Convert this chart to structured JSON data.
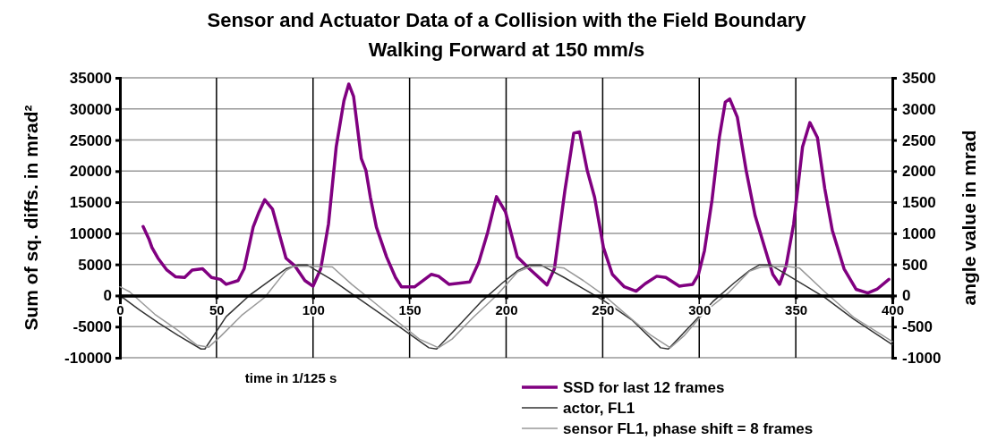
{
  "chart_data": {
    "type": "line",
    "title": "Sensor and Actuator Data of a Collision with the Field Boundary\nWalking Forward at 150 mm/s",
    "xlabel": "time in 1/125 s",
    "ylabel": "Sum of sq. diffs. in mrad²",
    "y2label": "angle value in mrad",
    "xlim": [
      0,
      400
    ],
    "xticks": [
      0,
      50,
      100,
      150,
      200,
      250,
      300,
      350,
      400
    ],
    "ylim": [
      -10000,
      35000
    ],
    "yticks": [
      -10000,
      -5000,
      0,
      5000,
      10000,
      15000,
      20000,
      25000,
      30000,
      35000
    ],
    "y2lim": [
      -1000,
      3500
    ],
    "y2ticks": [
      -1000,
      -500,
      0,
      500,
      1000,
      1500,
      2000,
      2500,
      3000,
      3500
    ],
    "grid": true,
    "legend": "bottom right",
    "line_style": "solid",
    "marker": "none",
    "series": [
      {
        "name": "SSD for last 12 frames",
        "color": "#800080",
        "x": [
          12,
          15,
          16.6,
          19.7,
          24.3,
          28.9,
          33.5,
          37.4,
          42.8,
          47.4,
          52,
          55,
          61.2,
          64.3,
          69,
          72,
          75,
          79,
          82,
          86,
          90.5,
          95.8,
          100,
          104,
          108,
          112,
          116,
          118.5,
          121,
          125,
          127.4,
          129.7,
          132.8,
          138.1,
          142.7,
          145.8,
          152.7,
          161.2,
          165,
          170.4,
          181.2,
          185.8,
          190.4,
          195,
          199.7,
          205.8,
          212,
          221.2,
          225,
          230.4,
          235,
          238,
          242,
          245.8,
          250.4,
          255,
          261.2,
          267.3,
          272,
          278,
          282.7,
          289.7,
          296.6,
          299.6,
          302.7,
          306.6,
          310.4,
          313.5,
          315.8,
          319.7,
          324.3,
          328.9,
          333.5,
          338.1,
          341.6,
          345,
          348.9,
          353.5,
          357.3,
          361.2,
          365,
          368.9,
          375,
          381.2,
          387.3,
          392,
          398.2
        ],
        "values": [
          11100,
          9100,
          7700,
          6000,
          4100,
          3000,
          2900,
          4100,
          4300,
          2900,
          2600,
          1800,
          2400,
          4300,
          11000,
          13400,
          15400,
          13900,
          10500,
          6000,
          4800,
          2400,
          1500,
          4300,
          11500,
          23900,
          31300,
          34000,
          32000,
          22000,
          20100,
          15800,
          11000,
          6200,
          2900,
          1400,
          1400,
          3400,
          3100,
          1800,
          2200,
          5300,
          10100,
          15900,
          13400,
          6200,
          4300,
          1700,
          4300,
          16800,
          26100,
          26300,
          20100,
          15800,
          7700,
          3400,
          1400,
          700,
          1900,
          3100,
          2900,
          1500,
          1800,
          3400,
          7200,
          15300,
          25400,
          31100,
          31600,
          28700,
          20100,
          12900,
          8100,
          3400,
          1800,
          4800,
          11500,
          23900,
          27800,
          25400,
          17200,
          10500,
          4300,
          1000,
          400,
          1000,
          2600
        ]
      },
      {
        "name": "actor, FL1",
        "color": "#333333",
        "axis": "y2",
        "x": [
          0,
          10,
          20,
          30,
          42,
          44,
          55,
          67,
          78,
          86,
          92,
          97,
          110,
          120,
          132,
          145,
          160,
          164,
          175,
          187,
          198,
          206,
          212,
          218,
          230,
          240,
          250,
          265,
          280,
          284,
          295,
          307,
          318,
          326,
          331,
          337,
          350,
          365,
          380,
          400
        ],
        "values": [
          0,
          -230,
          -440,
          -640,
          -860,
          -860,
          -340,
          0,
          250,
          430,
          490,
          490,
          250,
          30,
          -230,
          -510,
          -840,
          -860,
          -500,
          -100,
          200,
          400,
          490,
          490,
          290,
          110,
          -70,
          -390,
          -840,
          -860,
          -500,
          -100,
          200,
          400,
          490,
          490,
          250,
          -30,
          -380,
          -790
        ]
      },
      {
        "name": "sensor FL1, phase shift = 8 frames",
        "color": "#999999",
        "axis": "y2",
        "x": [
          0,
          5,
          18,
          30,
          40,
          46,
          52,
          63,
          75,
          86,
          90,
          100,
          110,
          120,
          132,
          145,
          155,
          165,
          172,
          183,
          195,
          206,
          213,
          222,
          230,
          240,
          250,
          262,
          275,
          285,
          292,
          303,
          315,
          326,
          332,
          345,
          352,
          365,
          380,
          400
        ],
        "values": [
          140,
          60,
          -300,
          -560,
          -800,
          -830,
          -660,
          -320,
          -30,
          400,
          470,
          470,
          460,
          180,
          -120,
          -450,
          -700,
          -840,
          -700,
          -350,
          0,
          380,
          470,
          470,
          440,
          240,
          20,
          -300,
          -640,
          -840,
          -650,
          -260,
          40,
          390,
          460,
          470,
          440,
          60,
          -350,
          -740
        ]
      }
    ]
  }
}
